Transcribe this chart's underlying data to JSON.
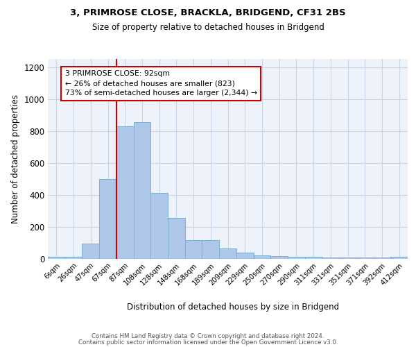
{
  "title1": "3, PRIMROSE CLOSE, BRACKLA, BRIDGEND, CF31 2BS",
  "title2": "Size of property relative to detached houses in Bridgend",
  "xlabel": "Distribution of detached houses by size in Bridgend",
  "ylabel": "Number of detached properties",
  "categories": [
    "6sqm",
    "26sqm",
    "47sqm",
    "67sqm",
    "87sqm",
    "108sqm",
    "128sqm",
    "148sqm",
    "168sqm",
    "189sqm",
    "209sqm",
    "229sqm",
    "250sqm",
    "270sqm",
    "290sqm",
    "311sqm",
    "331sqm",
    "351sqm",
    "371sqm",
    "392sqm",
    "412sqm"
  ],
  "values": [
    10,
    10,
    95,
    500,
    830,
    855,
    410,
    255,
    115,
    115,
    65,
    35,
    20,
    15,
    10,
    10,
    5,
    5,
    5,
    5,
    10
  ],
  "bar_color": "#aec6e8",
  "bar_edge_color": "#7aafd4",
  "vline_color": "#cc0000",
  "annotation_text": "3 PRIMROSE CLOSE: 92sqm\n← 26% of detached houses are smaller (823)\n73% of semi-detached houses are larger (2,344) →",
  "annotation_box_color": "#ffffff",
  "annotation_box_edge": "#cc0000",
  "grid_color": "#c8d4e8",
  "background_color": "#eef2fa",
  "footer_line1": "Contains HM Land Registry data © Crown copyright and database right 2024.",
  "footer_line2": "Contains public sector information licensed under the Open Government Licence v3.0.",
  "ylim": [
    0,
    1250
  ],
  "yticks": [
    0,
    200,
    400,
    600,
    800,
    1000,
    1200
  ],
  "vline_index": 4
}
